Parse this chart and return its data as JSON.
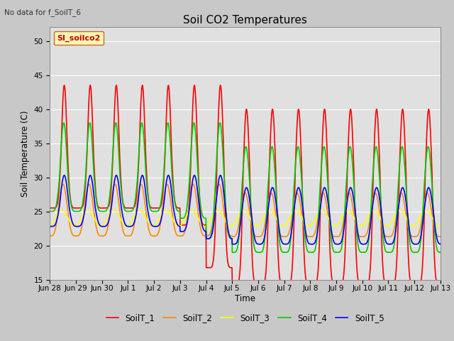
{
  "title": "Soil CO2 Temperatures",
  "ylabel": "Soil Temperature (C)",
  "xlabel": "Time",
  "ylim": [
    15,
    52
  ],
  "yticks": [
    15,
    20,
    25,
    30,
    35,
    40,
    45,
    50
  ],
  "note": "No data for f_SoilT_6",
  "legend_label": "SI_soilco2",
  "legend_entries": [
    "SoilT_1",
    "SoilT_2",
    "SoilT_3",
    "SoilT_4",
    "SoilT_5"
  ],
  "line_colors": [
    "#ff0000",
    "#ff8800",
    "#ffff00",
    "#00cc00",
    "#0000ff"
  ],
  "line_width": 1.2,
  "background_color": "#c8c8c8",
  "plot_bg_color": "#e0e0e0",
  "grid_color": "#ffffff",
  "xtick_labels": [
    "Jun 28",
    "Jun 29",
    "Jun 30",
    "Jul 1",
    "Jul 2",
    "Jul 3",
    "Jul 4",
    "Jul 5",
    "Jul 6",
    "Jul 7",
    "Jul 8",
    "Jul 9",
    "Jul 10",
    "Jul 11",
    "Jul 12",
    "Jul 13"
  ],
  "num_points": 1500
}
